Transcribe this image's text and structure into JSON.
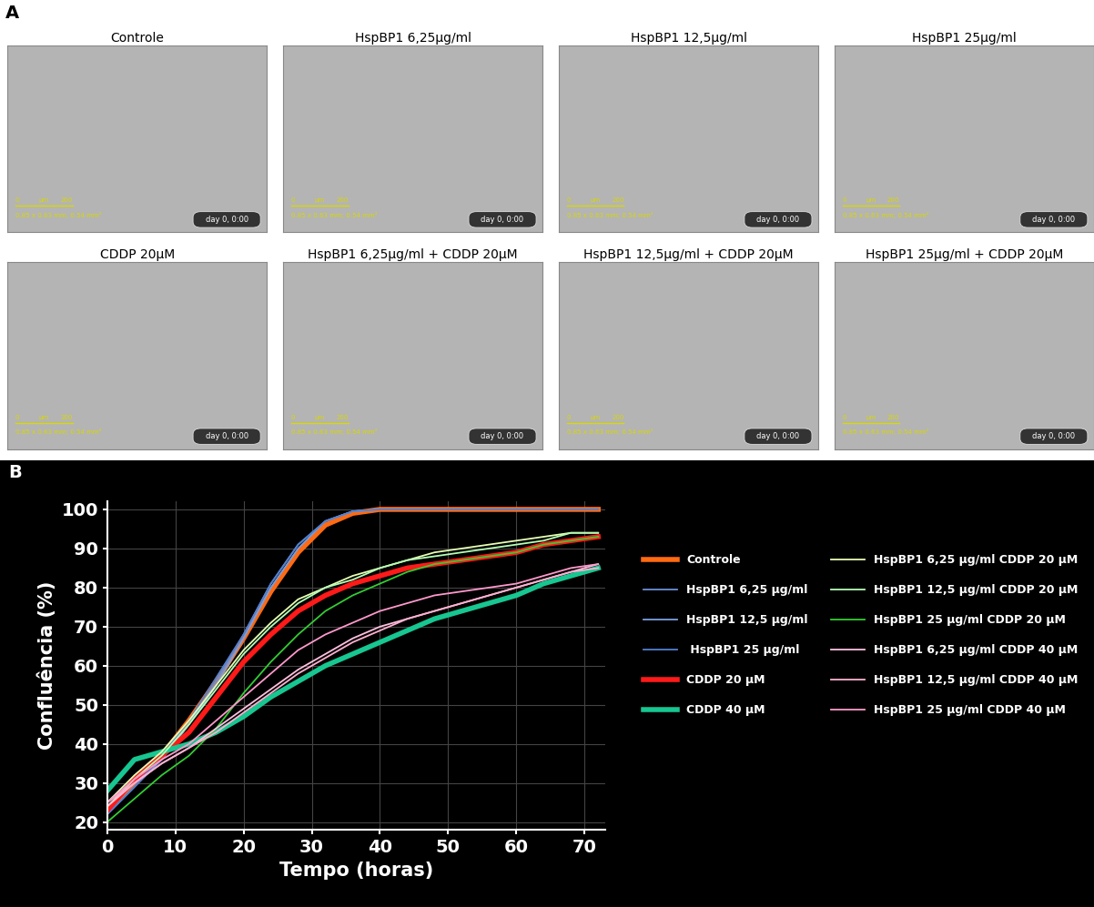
{
  "panel_labels": [
    "A",
    "B"
  ],
  "panel_a": {
    "images": [
      "Controle",
      "HspBP1 6,25µg/ml",
      "HspBP1 12,5µg/ml",
      "HspBP1 25µg/ml",
      "CDDP 20µM",
      "HspBP1 6,25µg/ml + CDDP 20µM",
      "HspBP1 12,5µg/ml + CDDP 20µM",
      "HspBP1 25µg/ml + CDDP 20µM"
    ],
    "scale_bar": [
      "0",
      "µm",
      "200"
    ],
    "dimensions": "0.85 x 0.63 mm; 0.54 mm²",
    "timestamp": "day 0, 0:00"
  },
  "chart_data": {
    "type": "line",
    "xlabel": "Tempo (horas)",
    "ylabel": "Confluência (%)",
    "x": [
      0,
      4,
      8,
      12,
      16,
      20,
      24,
      28,
      32,
      36,
      40,
      44,
      48,
      52,
      56,
      60,
      64,
      68,
      72
    ],
    "xlim": [
      0,
      73
    ],
    "xticks": [
      0,
      10,
      20,
      30,
      40,
      50,
      60,
      70
    ],
    "ylim": [
      18,
      102
    ],
    "yticks": [
      20,
      30,
      40,
      50,
      60,
      70,
      80,
      90,
      100
    ],
    "grid": true,
    "legend": "center right",
    "series": [
      {
        "name": "Controle",
        "color": "#ff6a13",
        "line_style": "thick",
        "values": [
          23,
          30,
          37,
          46,
          56,
          67,
          79,
          89,
          96,
          99,
          100,
          100,
          100,
          100,
          100,
          100,
          100,
          100,
          100
        ]
      },
      {
        "name": "HspBP1 6,25 µg/ml",
        "color": "#6a8fd8",
        "line_style": "solid",
        "values": [
          22,
          29,
          36,
          45,
          56,
          68,
          81,
          91,
          97,
          99.5,
          100,
          100,
          100,
          100,
          100,
          100,
          100,
          100,
          100
        ]
      },
      {
        "name": "HspBP1 12,5 µg/ml",
        "color": "#7aa0e0",
        "line_style": "solid",
        "values": [
          23,
          30,
          36,
          45,
          55,
          67,
          80,
          90,
          97,
          99.5,
          100,
          100,
          100,
          100,
          100,
          100,
          100,
          100,
          100
        ]
      },
      {
        "name": " HspBP1 25 µg/ml",
        "color": "#5080d0",
        "line_style": "solid",
        "values": [
          22,
          29,
          37,
          46,
          57,
          68,
          81,
          91,
          97,
          99.5,
          100,
          100,
          100,
          100,
          100,
          100,
          100,
          100,
          100
        ]
      },
      {
        "name": "CDDP 20 µM",
        "color": "#ff1a1a",
        "line_style": "thick",
        "values": [
          23,
          31,
          37,
          43,
          52,
          61,
          68,
          74,
          78,
          81,
          83,
          85,
          86,
          87,
          88,
          89,
          91,
          92,
          93
        ]
      },
      {
        "name": "CDDP 40 µM",
        "color": "#17c690",
        "line_style": "thick",
        "values": [
          28,
          36,
          38,
          40,
          43,
          47,
          52,
          56,
          60,
          63,
          66,
          69,
          72,
          74,
          76,
          78,
          81,
          83,
          85
        ]
      },
      {
        "name": "HspBP1 6,25 µg/ml CDDP 20 µM",
        "color": "#e6ffb3",
        "line_style": "solid",
        "values": [
          25,
          32,
          38,
          46,
          55,
          64,
          71,
          77,
          80,
          83,
          85,
          87,
          89,
          90,
          91,
          92,
          93,
          94,
          94
        ]
      },
      {
        "name": "HspBP1 12,5 µg/ml CDDP 20 µM",
        "color": "#b3ffb3",
        "line_style": "solid",
        "values": [
          24,
          31,
          37,
          45,
          54,
          63,
          70,
          76,
          80,
          82,
          85,
          87,
          88,
          89,
          90,
          91,
          92,
          94,
          94
        ]
      },
      {
        "name": "HspBP1 25 µg/ml CDDP 20 µM",
        "color": "#33cc33",
        "line_style": "solid",
        "values": [
          20,
          26,
          32,
          37,
          44,
          53,
          61,
          68,
          74,
          78,
          81,
          84,
          86,
          87,
          88,
          89,
          91,
          92,
          93
        ]
      },
      {
        "name": "HspBP1 6,25 µg/ml CDDP 40 µM",
        "color": "#ffc0e0",
        "line_style": "solid",
        "values": [
          24,
          30,
          35,
          39,
          44,
          49,
          54,
          59,
          63,
          67,
          70,
          72,
          74,
          76,
          78,
          80,
          82,
          84,
          86
        ]
      },
      {
        "name": "HspBP1 12,5 µg/ml CDDP 40 µM",
        "color": "#ffb0d0",
        "line_style": "solid",
        "values": [
          25,
          30,
          35,
          39,
          43,
          48,
          53,
          58,
          62,
          66,
          69,
          72,
          74,
          76,
          78,
          80,
          82,
          84,
          85
        ]
      },
      {
        "name": "HspBP1 25 µg/ml CDDP 40 µM",
        "color": "#ff99cc",
        "line_style": "solid",
        "values": [
          25,
          31,
          36,
          40,
          46,
          52,
          58,
          64,
          68,
          71,
          74,
          76,
          78,
          79,
          80,
          81,
          83,
          85,
          86
        ]
      }
    ]
  }
}
